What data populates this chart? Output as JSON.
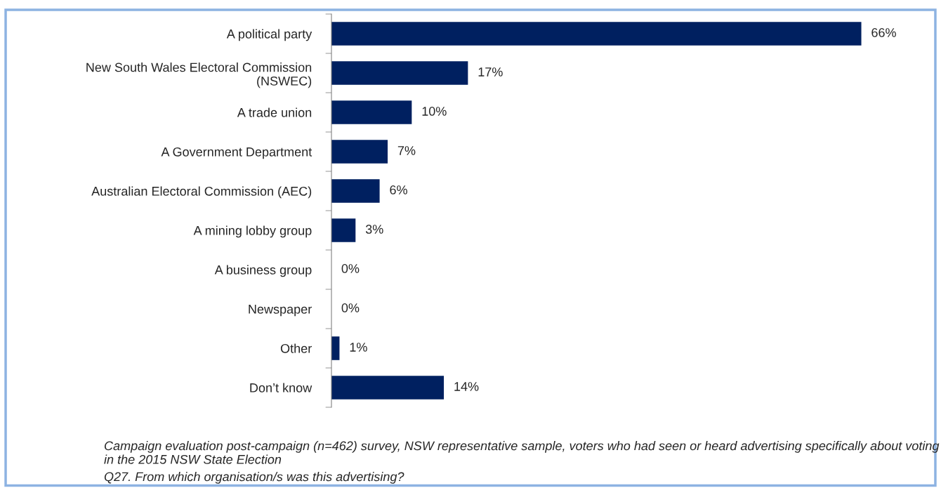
{
  "chart_data": {
    "type": "bar",
    "orientation": "horizontal",
    "categories": [
      "A political party",
      "New South Wales Electoral Commission\n(NSWEC)",
      "A trade union",
      "A Government Department",
      "Australian Electoral Commission (AEC)",
      "A mining lobby group",
      "A business group",
      "Newspaper",
      "Other",
      "Don’t know"
    ],
    "values": [
      66,
      17,
      10,
      7,
      6,
      3,
      0,
      0,
      1,
      14
    ],
    "value_labels": [
      "66%",
      "17%",
      "10%",
      "7%",
      "6%",
      "3%",
      "0%",
      "0%",
      "1%",
      "14%"
    ],
    "color": "#002060",
    "annotations": [
      "Campaign evaluation post-campaign (n=462) survey, NSW representative sample, voters who had seen or heard advertising specifically about voting in the 2015 NSW State Election",
      "Q27. From which organisation/s was this advertising?"
    ],
    "grid": false,
    "legend": false
  }
}
